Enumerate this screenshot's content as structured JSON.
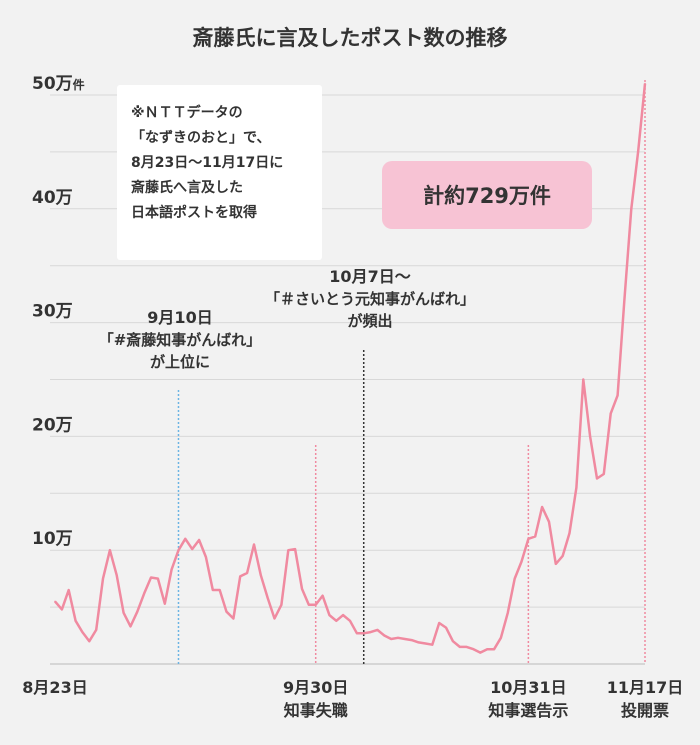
{
  "chart_data": {
    "type": "line",
    "title": "斎藤氏に言及したポスト数の推移",
    "ylim": [
      0,
      520000
    ],
    "grid": true,
    "y_ticks": [
      {
        "value": 100000,
        "label": "10万",
        "unit": ""
      },
      {
        "value": 200000,
        "label": "20万",
        "unit": ""
      },
      {
        "value": 300000,
        "label": "30万",
        "unit": ""
      },
      {
        "value": 400000,
        "label": "40万",
        "unit": ""
      },
      {
        "value": 500000,
        "label": "50万",
        "unit": "件"
      }
    ],
    "x_start": "2024-08-23",
    "x_end": "2024-11-17",
    "x_ticks": [
      {
        "date": "2024-08-23",
        "label": "8月23日",
        "sub": ""
      },
      {
        "date": "2024-09-30",
        "label": "9月30日",
        "sub": "知事失職"
      },
      {
        "date": "2024-10-31",
        "label": "10月31日",
        "sub": "知事選告示"
      },
      {
        "date": "2024-11-17",
        "label": "11月17日",
        "sub": "投開票"
      }
    ],
    "event_lines": [
      {
        "date": "2024-09-10",
        "color": "#6cb4e4"
      },
      {
        "date": "2024-09-30",
        "color": "#f08aa0"
      },
      {
        "date": "2024-10-07",
        "color": "#333333"
      },
      {
        "date": "2024-10-31",
        "color": "#f08aa0"
      },
      {
        "date": "2024-11-17",
        "color": "#f08aa0"
      }
    ],
    "series": [
      {
        "color": "#f08aa0",
        "points": [
          [
            "2024-08-23",
            55000
          ],
          [
            "2024-08-24",
            48000
          ],
          [
            "2024-08-25",
            65000
          ],
          [
            "2024-08-26",
            38000
          ],
          [
            "2024-08-27",
            28000
          ],
          [
            "2024-08-28",
            20000
          ],
          [
            "2024-08-29",
            30000
          ],
          [
            "2024-08-30",
            75000
          ],
          [
            "2024-08-31",
            100000
          ],
          [
            "2024-09-01",
            78000
          ],
          [
            "2024-09-02",
            45000
          ],
          [
            "2024-09-03",
            33000
          ],
          [
            "2024-09-04",
            46000
          ],
          [
            "2024-09-05",
            62000
          ],
          [
            "2024-09-06",
            76000
          ],
          [
            "2024-09-07",
            75000
          ],
          [
            "2024-09-08",
            53000
          ],
          [
            "2024-09-09",
            83000
          ],
          [
            "2024-09-10",
            100000
          ],
          [
            "2024-09-11",
            110000
          ],
          [
            "2024-09-12",
            101000
          ],
          [
            "2024-09-13",
            109000
          ],
          [
            "2024-09-14",
            94000
          ],
          [
            "2024-09-15",
            65000
          ],
          [
            "2024-09-16",
            65000
          ],
          [
            "2024-09-17",
            46000
          ],
          [
            "2024-09-18",
            40000
          ],
          [
            "2024-09-19",
            77000
          ],
          [
            "2024-09-20",
            80000
          ],
          [
            "2024-09-21",
            105000
          ],
          [
            "2024-09-22",
            78000
          ],
          [
            "2024-09-23",
            58000
          ],
          [
            "2024-09-24",
            40000
          ],
          [
            "2024-09-25",
            52000
          ],
          [
            "2024-09-26",
            100000
          ],
          [
            "2024-09-27",
            101000
          ],
          [
            "2024-09-28",
            66000
          ],
          [
            "2024-09-29",
            52000
          ],
          [
            "2024-09-30",
            52000
          ],
          [
            "2024-10-01",
            60000
          ],
          [
            "2024-10-02",
            43000
          ],
          [
            "2024-10-03",
            38000
          ],
          [
            "2024-10-04",
            43000
          ],
          [
            "2024-10-05",
            38000
          ],
          [
            "2024-10-06",
            27000
          ],
          [
            "2024-10-07",
            27000
          ],
          [
            "2024-10-08",
            28000
          ],
          [
            "2024-10-09",
            30000
          ],
          [
            "2024-10-10",
            25000
          ],
          [
            "2024-10-11",
            22000
          ],
          [
            "2024-10-12",
            23000
          ],
          [
            "2024-10-13",
            22000
          ],
          [
            "2024-10-14",
            21000
          ],
          [
            "2024-10-15",
            19000
          ],
          [
            "2024-10-16",
            18000
          ],
          [
            "2024-10-17",
            17000
          ],
          [
            "2024-10-18",
            36000
          ],
          [
            "2024-10-19",
            32000
          ],
          [
            "2024-10-20",
            20000
          ],
          [
            "2024-10-21",
            15000
          ],
          [
            "2024-10-22",
            15000
          ],
          [
            "2024-10-23",
            13000
          ],
          [
            "2024-10-24",
            10000
          ],
          [
            "2024-10-25",
            13000
          ],
          [
            "2024-10-26",
            13000
          ],
          [
            "2024-10-27",
            23000
          ],
          [
            "2024-10-28",
            45000
          ],
          [
            "2024-10-29",
            75000
          ],
          [
            "2024-10-30",
            90000
          ],
          [
            "2024-10-31",
            110000
          ],
          [
            "2024-11-01",
            112000
          ],
          [
            "2024-11-02",
            138000
          ],
          [
            "2024-11-03",
            125000
          ],
          [
            "2024-11-04",
            88000
          ],
          [
            "2024-11-05",
            95000
          ],
          [
            "2024-11-06",
            115000
          ],
          [
            "2024-11-07",
            155000
          ],
          [
            "2024-11-08",
            250000
          ],
          [
            "2024-11-09",
            200000
          ],
          [
            "2024-11-10",
            163000
          ],
          [
            "2024-11-11",
            167000
          ],
          [
            "2024-11-12",
            220000
          ],
          [
            "2024-11-13",
            236000
          ],
          [
            "2024-11-14",
            320000
          ],
          [
            "2024-11-15",
            400000
          ],
          [
            "2024-11-16",
            450000
          ],
          [
            "2024-11-17",
            510000
          ]
        ]
      }
    ]
  },
  "note_box": {
    "lines": [
      "※ＮＴＴデータの",
      "「なずきのおと」で、",
      "8月23日～11月17日に",
      "斎藤氏へ言及した",
      "日本語ポストを取得"
    ]
  },
  "total_badge": "計約729万件",
  "annotations": {
    "sep10": {
      "line1": "9月10日",
      "line2": "「#斎藤知事がんばれ」",
      "line3": "が上位に"
    },
    "oct7": {
      "line1": "10月7日～",
      "line2": "「＃さいとう元知事がんばれ」",
      "line3": "が頻出"
    }
  }
}
